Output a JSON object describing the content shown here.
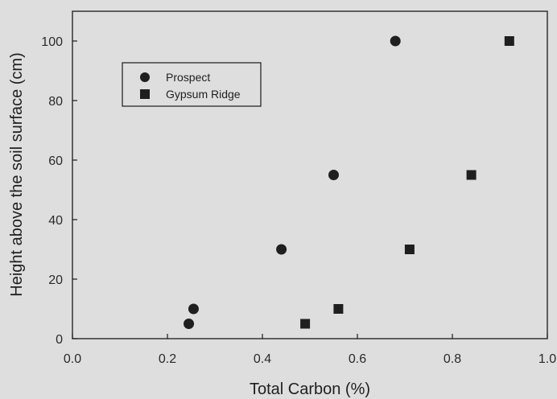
{
  "chart_data": {
    "type": "scatter",
    "title": "",
    "xlabel": "Total Carbon (%)",
    "ylabel": "Height above the soil surface (cm)",
    "xlim": [
      0.0,
      1.0
    ],
    "ylim": [
      0,
      110
    ],
    "x_ticks": [
      0.0,
      0.2,
      0.4,
      0.6,
      0.8,
      1.0
    ],
    "x_tick_labels": [
      "0.0",
      "0.2",
      "0.4",
      "0.6",
      "0.8",
      "1.0"
    ],
    "y_ticks": [
      0,
      20,
      40,
      60,
      80,
      100
    ],
    "y_tick_labels": [
      "0",
      "20",
      "40",
      "60",
      "80",
      "100"
    ],
    "grid": false,
    "legend_position": "top-left",
    "series": [
      {
        "name": "Prospect",
        "marker": "circle",
        "color": "#1f1f1f",
        "points": [
          {
            "x": 0.245,
            "y": 5
          },
          {
            "x": 0.255,
            "y": 10
          },
          {
            "x": 0.44,
            "y": 30
          },
          {
            "x": 0.55,
            "y": 55
          },
          {
            "x": 0.68,
            "y": 100
          }
        ]
      },
      {
        "name": "Gypsum Ridge",
        "marker": "square",
        "color": "#1f1f1f",
        "points": [
          {
            "x": 0.49,
            "y": 5
          },
          {
            "x": 0.56,
            "y": 10
          },
          {
            "x": 0.71,
            "y": 30
          },
          {
            "x": 0.84,
            "y": 55
          },
          {
            "x": 0.92,
            "y": 100
          }
        ]
      }
    ]
  }
}
